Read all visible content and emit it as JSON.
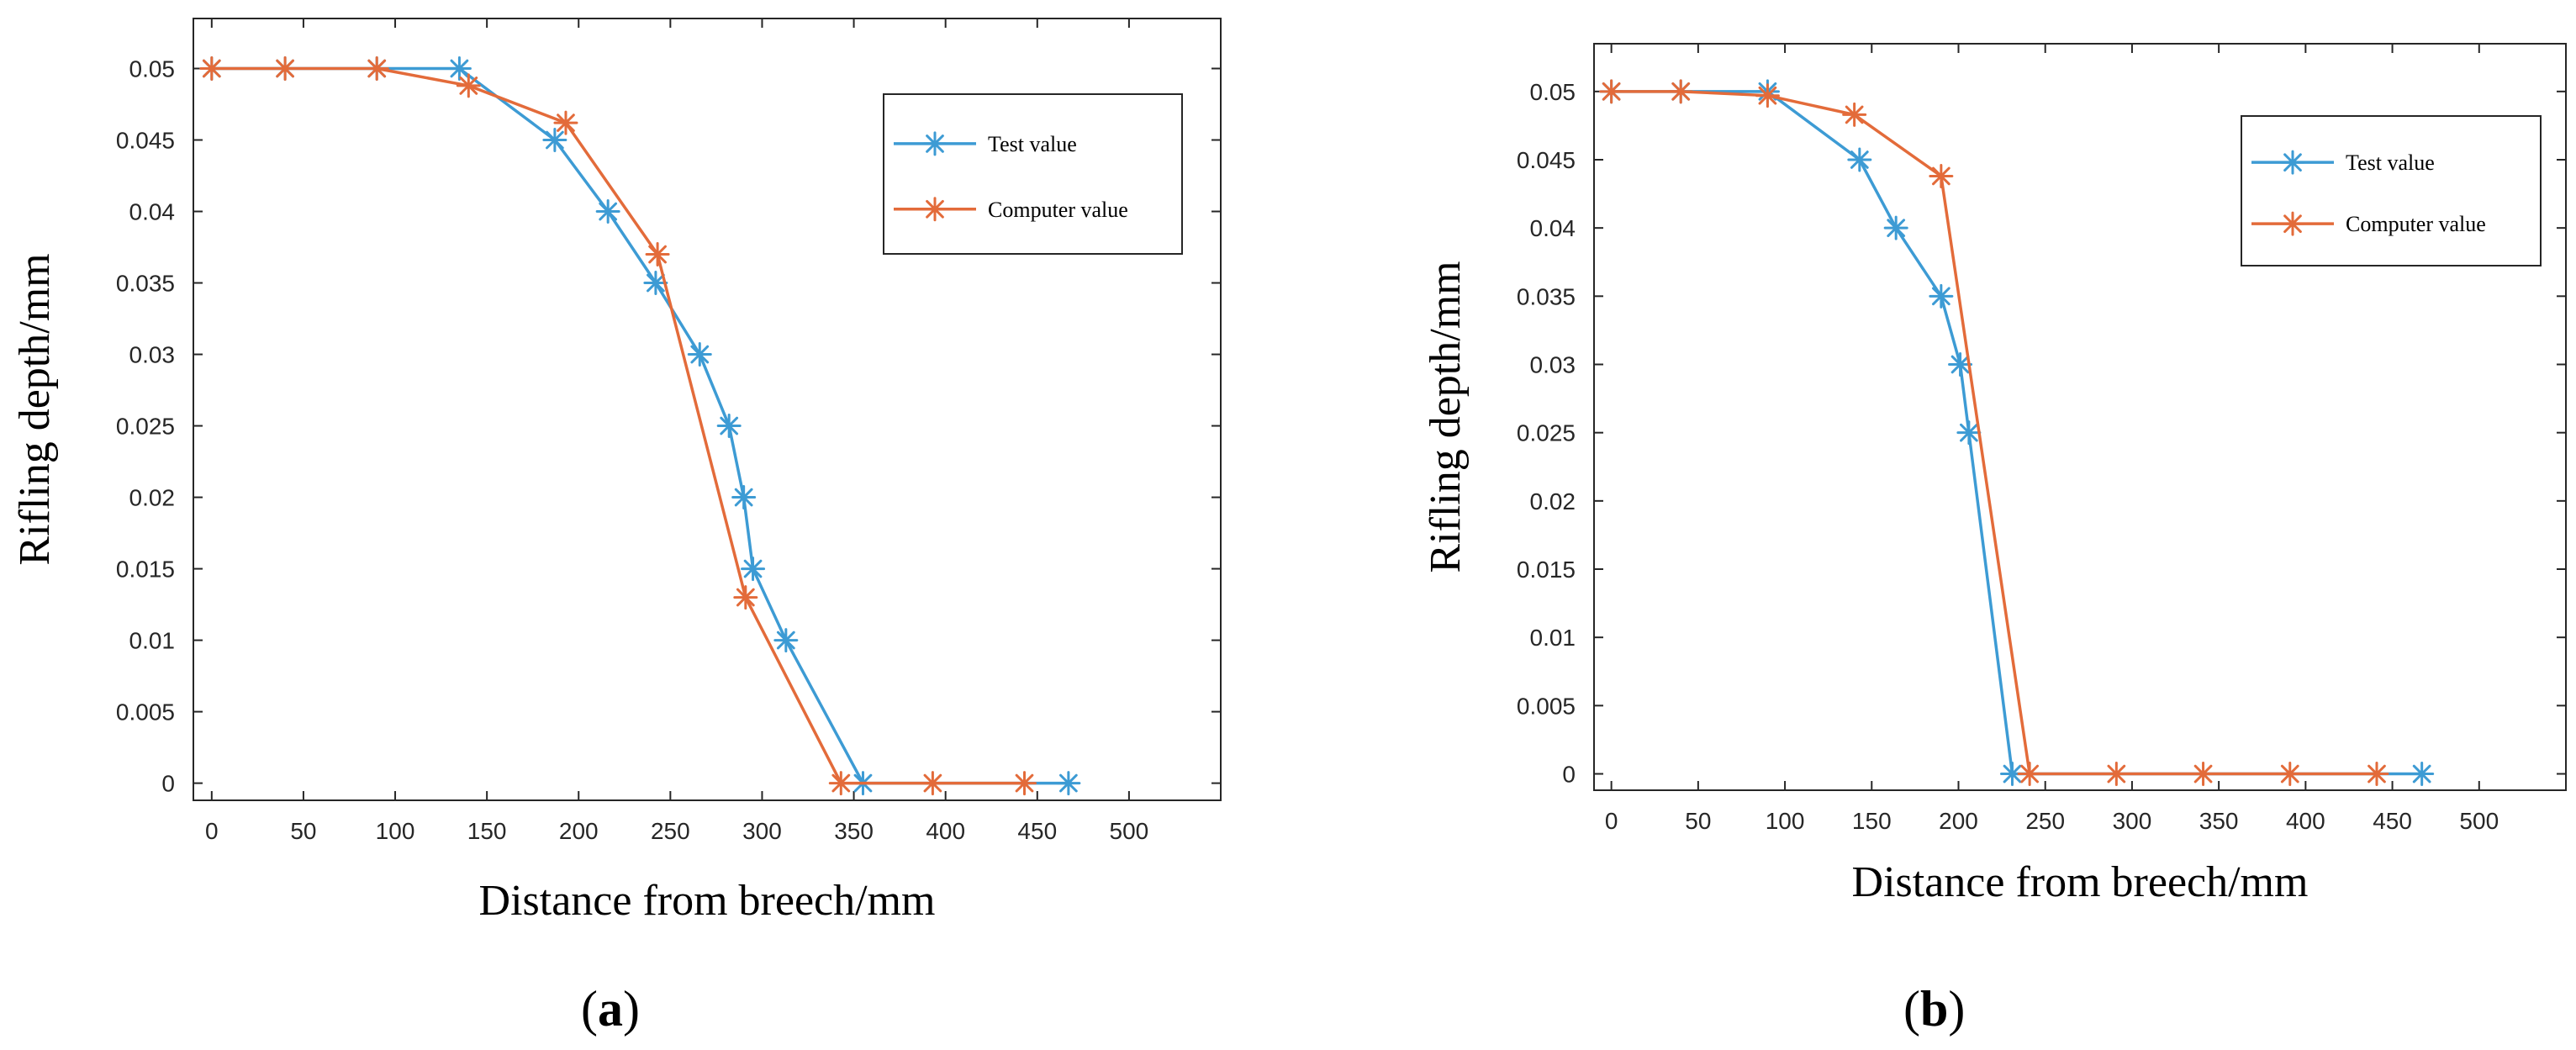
{
  "colors": {
    "test": "#3d9bd4",
    "computer": "#e36b3a",
    "axis": "#262626"
  },
  "chart_data": [
    {
      "type": "line",
      "panel_label": "a",
      "xlabel": "Distance from breech/mm",
      "ylabel": "Rifling depth/mm",
      "xlim": [
        -10,
        550
      ],
      "ylim": [
        -0.0012,
        0.0535
      ],
      "xticks": [
        0,
        50,
        100,
        150,
        200,
        250,
        300,
        350,
        400,
        450,
        500
      ],
      "yticks": [
        0,
        0.005,
        0.01,
        0.015,
        0.02,
        0.025,
        0.03,
        0.035,
        0.04,
        0.045,
        0.05
      ],
      "xtick_labels": [
        "0",
        "50",
        "100",
        "150",
        "200",
        "250",
        "300",
        "350",
        "400",
        "450",
        "500"
      ],
      "ytick_labels": [
        "0",
        "0.005",
        "0.01",
        "0.015",
        "0.02",
        "0.025",
        "0.03",
        "0.035",
        "0.04",
        "0.045",
        "0.05"
      ],
      "legend": {
        "position": "top-right",
        "entries": [
          "Test value",
          "Computer value"
        ]
      },
      "series": [
        {
          "name": "Test value",
          "x": [
            0,
            40,
            90,
            135,
            187,
            216,
            242,
            266,
            282,
            290,
            295,
            313,
            355,
            467
          ],
          "y": [
            0.05,
            0.05,
            0.05,
            0.05,
            0.045,
            0.04,
            0.035,
            0.03,
            0.025,
            0.02,
            0.015,
            0.01,
            0,
            0
          ]
        },
        {
          "name": "Computer value",
          "x": [
            0,
            40,
            90,
            140,
            193,
            243,
            291,
            343,
            393,
            443
          ],
          "y": [
            0.05,
            0.05,
            0.05,
            0.0488,
            0.0462,
            0.037,
            0.013,
            0,
            0,
            0
          ]
        }
      ]
    },
    {
      "type": "line",
      "panel_label": "b",
      "xlabel": "Distance from breech/mm",
      "ylabel": "Rifling depth/mm",
      "xlim": [
        -10,
        550
      ],
      "ylim": [
        -0.0012,
        0.0535
      ],
      "xticks": [
        0,
        50,
        100,
        150,
        200,
        250,
        300,
        350,
        400,
        450,
        500
      ],
      "yticks": [
        0,
        0.005,
        0.01,
        0.015,
        0.02,
        0.025,
        0.03,
        0.035,
        0.04,
        0.045,
        0.05
      ],
      "xtick_labels": [
        "0",
        "50",
        "100",
        "150",
        "200",
        "250",
        "300",
        "350",
        "400",
        "450",
        "500"
      ],
      "ytick_labels": [
        "0",
        "0.005",
        "0.01",
        "0.015",
        "0.02",
        "0.025",
        "0.03",
        "0.035",
        "0.04",
        "0.045",
        "0.05"
      ],
      "legend": {
        "position": "top-right",
        "entries": [
          "Test value",
          "Computer value"
        ]
      },
      "series": [
        {
          "name": "Test value",
          "x": [
            0,
            40,
            90,
            143,
            164,
            190,
            201,
            206,
            231,
            467
          ],
          "y": [
            0.05,
            0.05,
            0.05,
            0.045,
            0.04,
            0.035,
            0.03,
            0.025,
            0,
            0
          ]
        },
        {
          "name": "Computer value",
          "x": [
            0,
            40,
            90,
            140,
            190,
            241,
            291,
            341,
            391,
            441
          ],
          "y": [
            0.05,
            0.05,
            0.0497,
            0.0483,
            0.0438,
            0,
            0,
            0,
            0,
            0
          ]
        }
      ]
    }
  ]
}
